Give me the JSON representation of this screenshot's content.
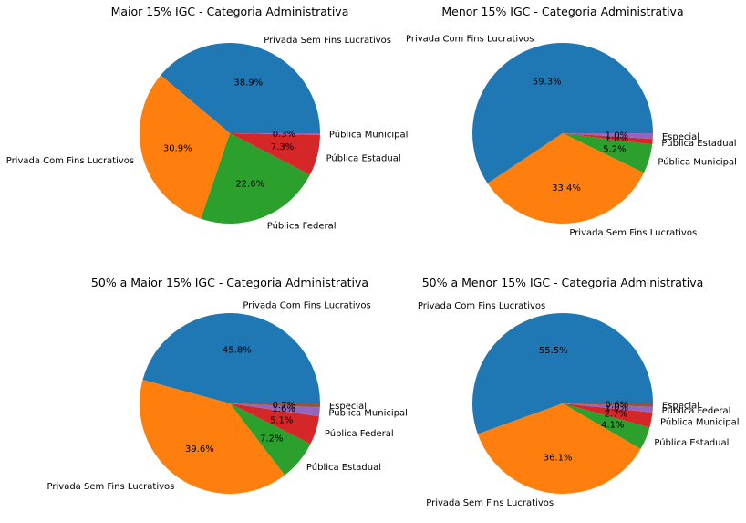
{
  "figure": {
    "background": "#ffffff"
  },
  "chart_data": [
    {
      "type": "pie",
      "title": "Maior 15% IGC - Categoria Administrativa",
      "labels": [
        "Privada Sem Fins Lucrativos",
        "Privada Com Fins Lucrativos",
        "Pública Federal",
        "Pública Estadual",
        "Pública Municipal"
      ],
      "values": [
        38.9,
        30.9,
        22.6,
        7.3,
        0.3
      ],
      "percent_labels": [
        "38.9%",
        "30.9%",
        "22.6%",
        "7.3%",
        "0.3%"
      ],
      "colors": [
        "#1f77b4",
        "#ff7f0e",
        "#2ca02c",
        "#d62728",
        "#9467bd"
      ]
    },
    {
      "type": "pie",
      "title": "Menor 15% IGC - Categoria Administrativa",
      "labels": [
        "Privada Com Fins Lucrativos",
        "Privada Sem Fins Lucrativos",
        "Pública Municipal",
        "Pública Estadual",
        "Especial"
      ],
      "values": [
        59.3,
        33.4,
        5.2,
        1.0,
        1.0
      ],
      "percent_labels": [
        "59.3%",
        "33.4%",
        "5.2%",
        "1.0%",
        "1.0%"
      ],
      "colors": [
        "#1f77b4",
        "#ff7f0e",
        "#2ca02c",
        "#d62728",
        "#9467bd"
      ]
    },
    {
      "type": "pie",
      "title": "50% a Maior 15% IGC - Categoria Administrativa",
      "labels": [
        "Privada Com Fins Lucrativos",
        "Privada Sem Fins Lucrativos",
        "Pública Estadual",
        "Pública Federal",
        "Pública Municipal",
        "Especial"
      ],
      "values": [
        45.8,
        39.6,
        7.2,
        5.1,
        1.6,
        0.7
      ],
      "percent_labels": [
        "45.8%",
        "39.6%",
        "7.2%",
        "5.1%",
        "1.6%",
        "0.7%"
      ],
      "colors": [
        "#1f77b4",
        "#ff7f0e",
        "#2ca02c",
        "#d62728",
        "#9467bd",
        "#8c564b"
      ]
    },
    {
      "type": "pie",
      "title": "50% a Menor 15% IGC - Categoria Administrativa",
      "labels": [
        "Privada Com Fins Lucrativos",
        "Privada Sem Fins Lucrativos",
        "Pública Estadual",
        "Pública Municipal",
        "Pública Federal",
        "Especial"
      ],
      "values": [
        55.5,
        36.1,
        4.1,
        2.7,
        1.0,
        0.6
      ],
      "percent_labels": [
        "55.5%",
        "36.1%",
        "4.1%",
        "2.7%",
        "1.0%",
        "0.6%"
      ],
      "colors": [
        "#1f77b4",
        "#ff7f0e",
        "#2ca02c",
        "#d62728",
        "#9467bd",
        "#8c564b"
      ]
    }
  ]
}
